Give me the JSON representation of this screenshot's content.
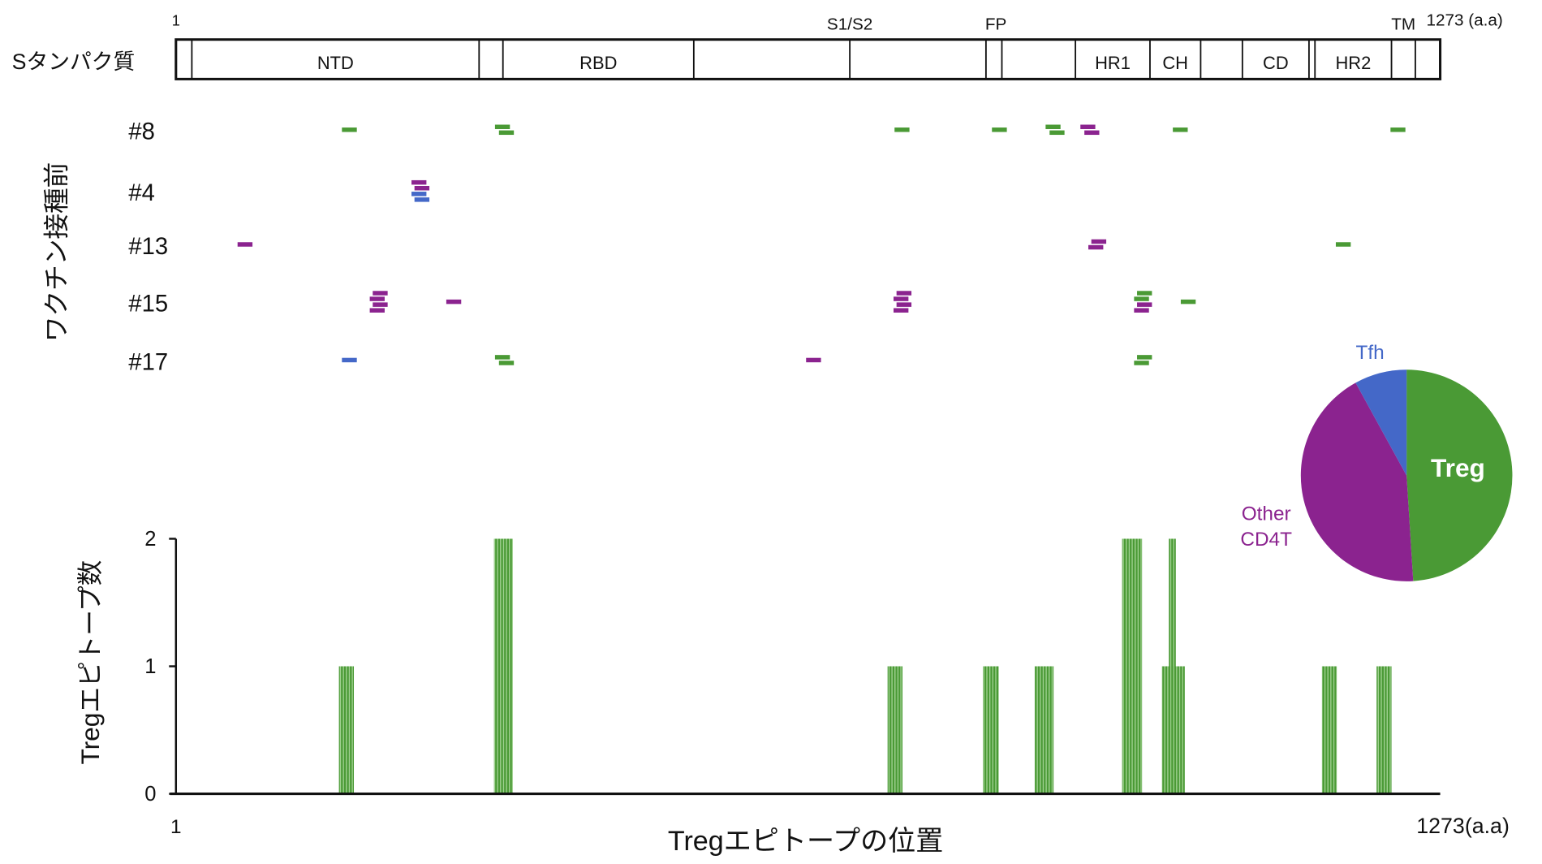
{
  "colors": {
    "Treg": "#4a9a35",
    "Other": "#8b238f",
    "Tfh": "#4468c8",
    "axis": "#111111"
  },
  "protein": {
    "label": "Sタンパク質",
    "start_label": "1",
    "end_label": "1273 (a.a)",
    "length": 1273,
    "boundaries": [
      17,
      306,
      330,
      522,
      679,
      816,
      832,
      906,
      981,
      1032,
      1074,
      1141,
      1147,
      1224,
      1248
    ],
    "domains": [
      {
        "name": "NTD",
        "start": 17,
        "end": 306
      },
      {
        "name": "RBD",
        "start": 330,
        "end": 522
      },
      {
        "name": "HR1",
        "start": 906,
        "end": 981
      },
      {
        "name": "CH",
        "start": 981,
        "end": 1032
      },
      {
        "name": "CD",
        "start": 1074,
        "end": 1141
      },
      {
        "name": "HR2",
        "start": 1147,
        "end": 1224
      }
    ],
    "sites": [
      {
        "name": "S1/S2",
        "pos": 679
      },
      {
        "name": "FP",
        "pos": 826
      },
      {
        "name": "TM",
        "pos": 1236
      }
    ]
  },
  "chart_data": [
    {
      "type": "scatter",
      "ylabel": "ワクチン接種前",
      "epitope_length": 15,
      "rows": [
        {
          "label": "#8",
          "epitopes": [
            {
              "start": 168,
              "type": "Treg"
            },
            {
              "start": 322,
              "type": "Treg"
            },
            {
              "start": 326,
              "type": "Treg"
            },
            {
              "start": 724,
              "type": "Treg"
            },
            {
              "start": 822,
              "type": "Treg"
            },
            {
              "start": 876,
              "type": "Treg"
            },
            {
              "start": 880,
              "type": "Treg"
            },
            {
              "start": 911,
              "type": "Other"
            },
            {
              "start": 915,
              "type": "Other"
            },
            {
              "start": 1004,
              "type": "Treg"
            },
            {
              "start": 1223,
              "type": "Treg"
            }
          ]
        },
        {
          "label": "#4",
          "epitopes": [
            {
              "start": 238,
              "type": "Other"
            },
            {
              "start": 241,
              "type": "Other"
            },
            {
              "start": 238,
              "type": "Tfh"
            },
            {
              "start": 241,
              "type": "Tfh"
            }
          ]
        },
        {
          "label": "#13",
          "epitopes": [
            {
              "start": 63,
              "type": "Other"
            },
            {
              "start": 922,
              "type": "Other"
            },
            {
              "start": 919,
              "type": "Other"
            },
            {
              "start": 1168,
              "type": "Treg"
            }
          ]
        },
        {
          "label": "#15",
          "epitopes": [
            {
              "start": 199,
              "type": "Other"
            },
            {
              "start": 196,
              "type": "Other"
            },
            {
              "start": 199,
              "type": "Other"
            },
            {
              "start": 196,
              "type": "Other"
            },
            {
              "start": 273,
              "type": "Other"
            },
            {
              "start": 726,
              "type": "Other"
            },
            {
              "start": 723,
              "type": "Other"
            },
            {
              "start": 726,
              "type": "Other"
            },
            {
              "start": 723,
              "type": "Other"
            },
            {
              "start": 968,
              "type": "Treg"
            },
            {
              "start": 965,
              "type": "Treg"
            },
            {
              "start": 968,
              "type": "Other"
            },
            {
              "start": 965,
              "type": "Other"
            },
            {
              "start": 1012,
              "type": "Treg"
            }
          ]
        },
        {
          "label": "#17",
          "epitopes": [
            {
              "start": 168,
              "type": "Tfh"
            },
            {
              "start": 322,
              "type": "Treg"
            },
            {
              "start": 326,
              "type": "Treg"
            },
            {
              "start": 635,
              "type": "Other"
            },
            {
              "start": 968,
              "type": "Treg"
            },
            {
              "start": 965,
              "type": "Treg"
            }
          ]
        }
      ]
    },
    {
      "type": "pie",
      "slices": [
        {
          "name": "Treg",
          "value": 49
        },
        {
          "name": "Other CD4T",
          "label_lines": [
            "Other",
            "CD4T"
          ],
          "value": 43
        },
        {
          "name": "Tfh",
          "value": 8
        }
      ]
    },
    {
      "type": "bar",
      "ylabel": "Tregエピトープ数",
      "xlabel": "Tregエピトープの位置",
      "x_start_label": "1",
      "x_end_label": "1273(a.a)",
      "xlim": [
        1,
        1273
      ],
      "ylim": [
        0,
        2
      ],
      "yticks": [
        "0",
        "1",
        "2"
      ],
      "bars": [
        {
          "start": 165,
          "end": 180,
          "value": 1
        },
        {
          "start": 321,
          "end": 340,
          "value": 2
        },
        {
          "start": 717,
          "end": 732,
          "value": 1
        },
        {
          "start": 813,
          "end": 829,
          "value": 1
        },
        {
          "start": 865,
          "end": 884,
          "value": 1
        },
        {
          "start": 953,
          "end": 973,
          "value": 2
        },
        {
          "start": 993,
          "end": 1016,
          "value": 1
        },
        {
          "start": 1000,
          "end": 1007,
          "value": 2
        },
        {
          "start": 1154,
          "end": 1169,
          "value": 1
        },
        {
          "start": 1209,
          "end": 1224,
          "value": 1
        }
      ]
    }
  ]
}
